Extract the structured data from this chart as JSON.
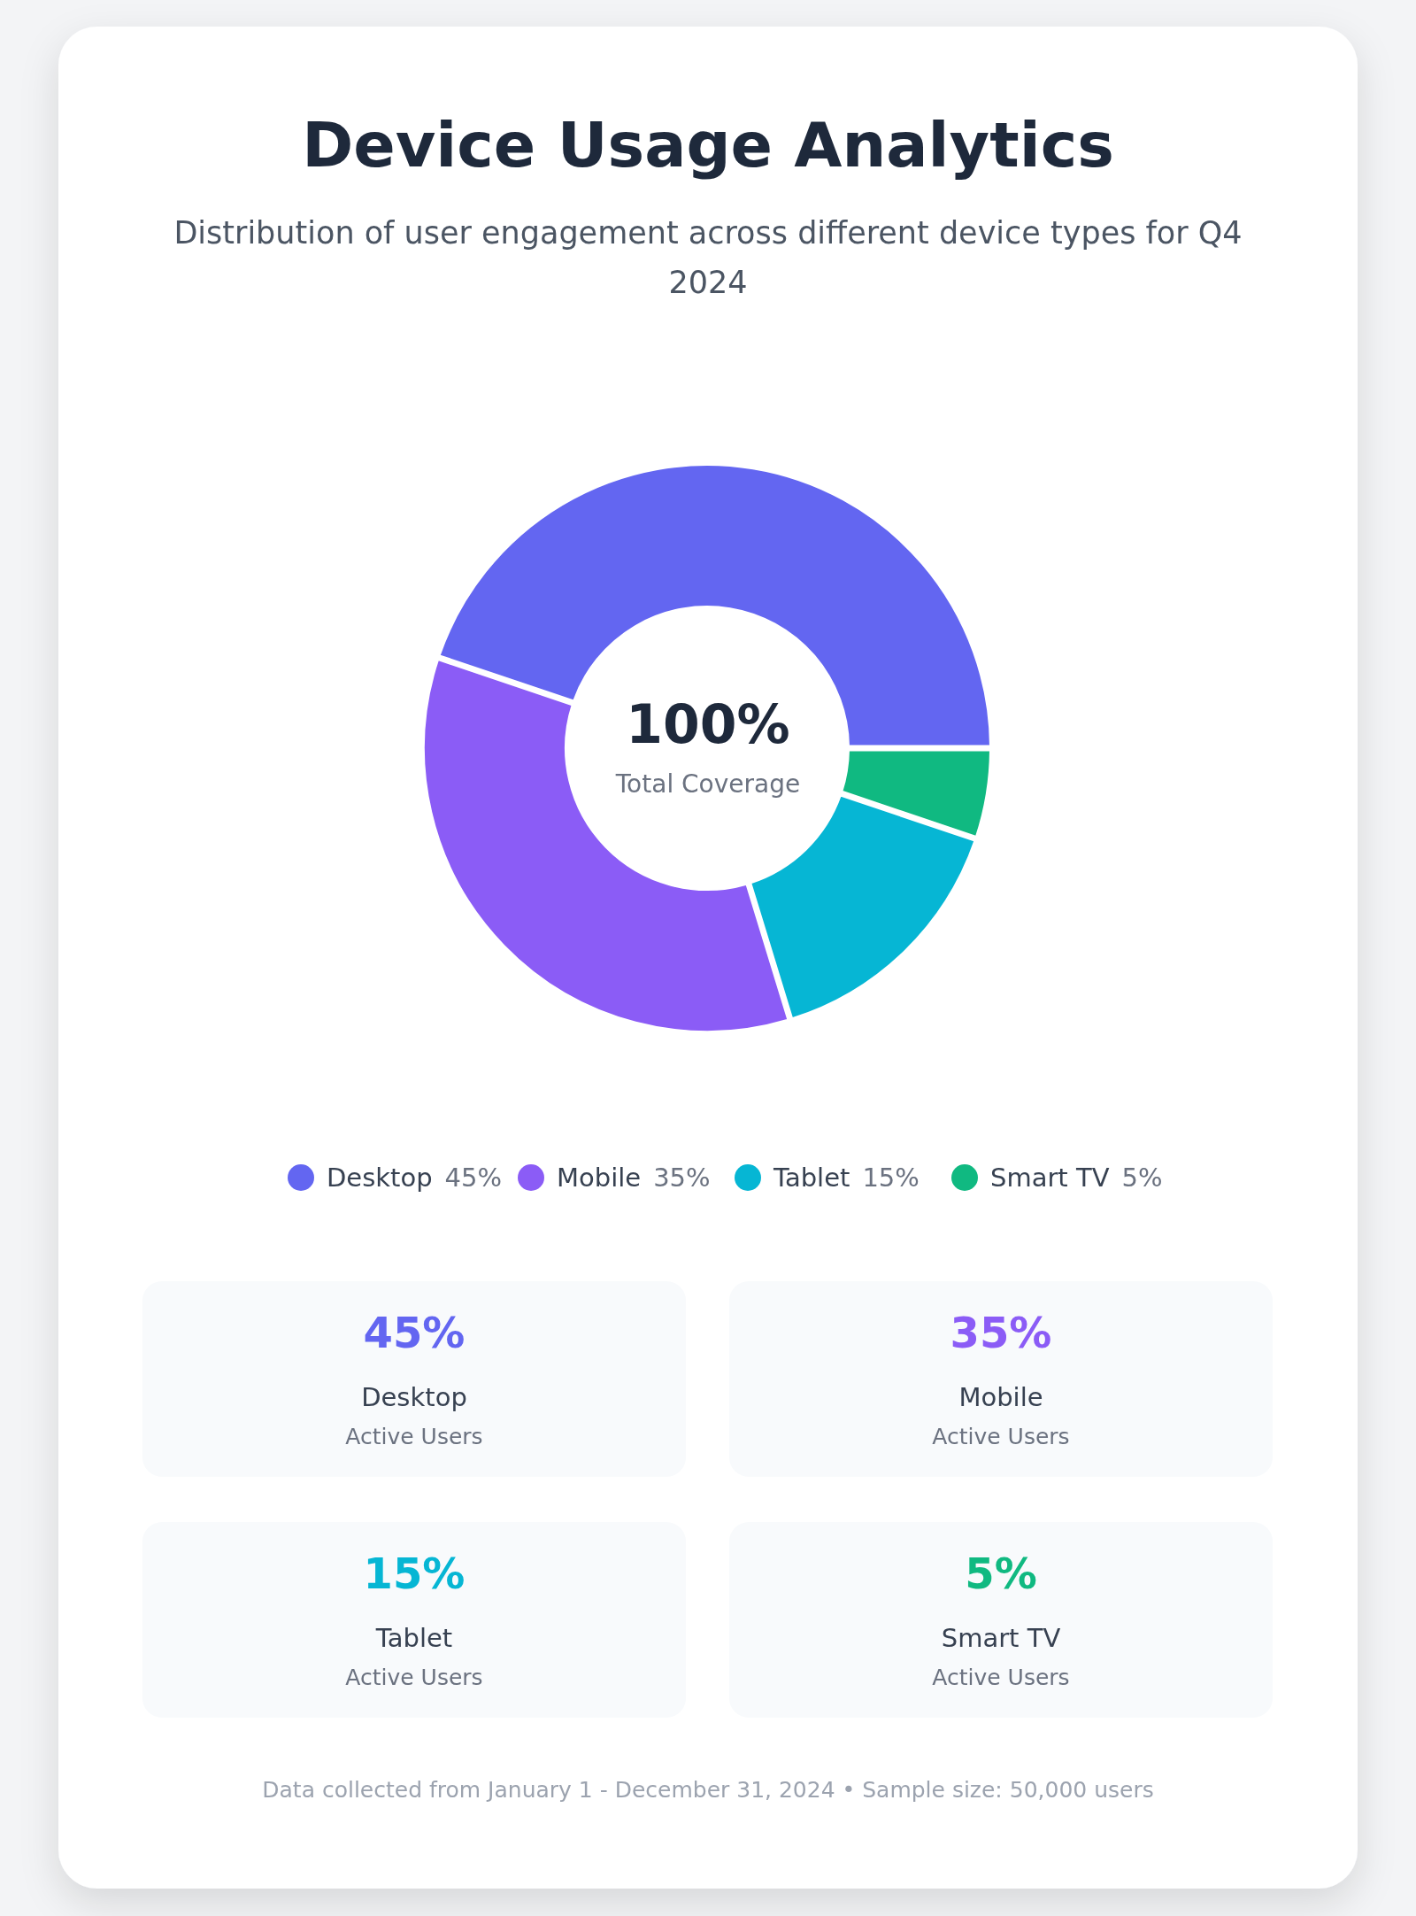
{
  "chart_data": {
    "type": "donut",
    "title": "Device Usage Analytics",
    "subtitle": "Distribution of user engagement across different device types for Q4 2024",
    "categories": [
      "Desktop",
      "Mobile",
      "Tablet",
      "Smart TV"
    ],
    "values": [
      45,
      35,
      15,
      5
    ],
    "colors": [
      "#6366f1",
      "#8b5cf6",
      "#06b6d4",
      "#10b981"
    ],
    "legend": "bottom",
    "value_labels": [
      "45%",
      "35%",
      "15%",
      "5%"
    ],
    "annotations": [
      "100%",
      "Total Coverage",
      "Active Users",
      "Data collected from January 1 - December 31, 2024 • Sample size: 50,000 users"
    ]
  }
}
